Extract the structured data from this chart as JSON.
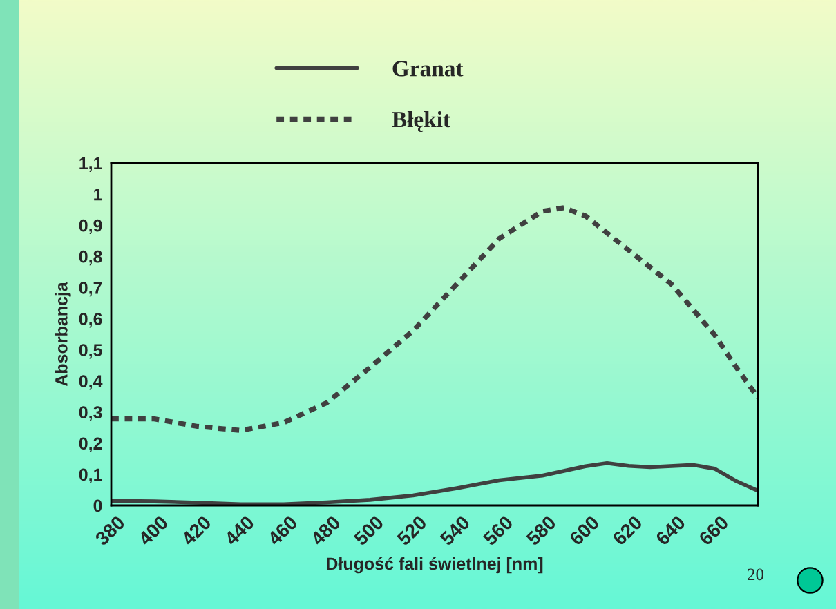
{
  "chart_data": {
    "type": "line",
    "xlabel": "Długość fali świetlnej [nm]",
    "ylabel": "Absorbancja",
    "xlim": [
      380,
      680
    ],
    "xticks": [
      380,
      400,
      420,
      440,
      460,
      480,
      500,
      520,
      540,
      560,
      580,
      600,
      620,
      640,
      660
    ],
    "ylim": [
      0,
      1.1
    ],
    "yticks": [
      {
        "value": 0,
        "label": "0"
      },
      {
        "value": 0.1,
        "label": "0,1"
      },
      {
        "value": 0.2,
        "label": "0,2"
      },
      {
        "value": 0.3,
        "label": "0,3"
      },
      {
        "value": 0.4,
        "label": "0,4"
      },
      {
        "value": 0.5,
        "label": "0,5"
      },
      {
        "value": 0.6,
        "label": "0,6"
      },
      {
        "value": 0.7,
        "label": "0,7"
      },
      {
        "value": 0.8,
        "label": "0,8"
      },
      {
        "value": 0.9,
        "label": "0,9"
      },
      {
        "value": 1,
        "label": "1"
      },
      {
        "value": 1.1,
        "label": "1,1"
      }
    ],
    "grid": false,
    "legend": "top",
    "marker": "none",
    "series": [
      {
        "name": "Granat",
        "color": "#404040",
        "line_style": "solid",
        "x": [
          380,
          400,
          420,
          440,
          460,
          480,
          500,
          520,
          540,
          560,
          580,
          600,
          610,
          620,
          630,
          650,
          660,
          670,
          680
        ],
        "values": [
          0.015,
          0.013,
          0.009,
          0.004,
          0.004,
          0.01,
          0.018,
          0.032,
          0.055,
          0.081,
          0.096,
          0.126,
          0.136,
          0.127,
          0.123,
          0.13,
          0.118,
          0.078,
          0.047
        ]
      },
      {
        "name": "Błękit",
        "color": "#404040",
        "line_style": "dotted",
        "x": [
          380,
          400,
          420,
          440,
          460,
          480,
          500,
          520,
          540,
          560,
          580,
          590,
          600,
          620,
          640,
          660,
          670,
          680
        ],
        "values": [
          0.278,
          0.278,
          0.254,
          0.241,
          0.266,
          0.33,
          0.443,
          0.561,
          0.709,
          0.857,
          0.945,
          0.956,
          0.93,
          0.82,
          0.71,
          0.547,
          0.443,
          0.347
        ]
      }
    ],
    "annotations": [
      "20"
    ]
  }
}
